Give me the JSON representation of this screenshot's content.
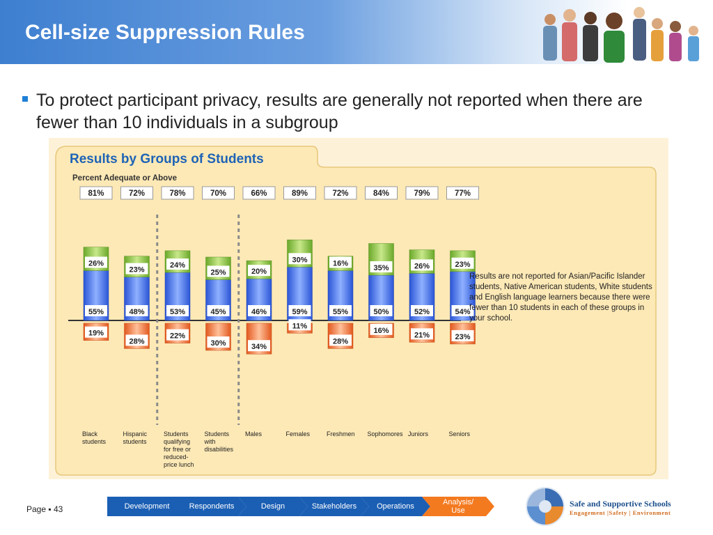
{
  "slide": {
    "title": "Cell-size Suppression Rules"
  },
  "bullet": {
    "text": "To protect participant privacy, results are generally not reported when there are fewer than 10 individuals in a subgroup"
  },
  "chart_data": {
    "type": "bar",
    "title": "Results by Groups of Students",
    "subtitle": "Percent Adequate or Above",
    "categories": [
      "Black students",
      "Hispanic students",
      "Students qualifying for free or reduced-price lunch",
      "Students with disabilities",
      "Males",
      "Females",
      "Freshmen",
      "Sophomores",
      "Juniors",
      "Seniors"
    ],
    "category_label_lines": [
      [
        "Black",
        "students"
      ],
      [
        "Hispanic",
        "students"
      ],
      [
        "Students",
        "qualifying",
        "for free or",
        "reduced-",
        "price lunch"
      ],
      [
        "Students",
        "with",
        "disabilities"
      ],
      [
        "Males"
      ],
      [
        "Females"
      ],
      [
        "Freshmen"
      ],
      [
        "Sophomores"
      ],
      [
        "Juniors"
      ],
      [
        "Seniors"
      ]
    ],
    "totals_labels": [
      "81%",
      "72%",
      "78%",
      "70%",
      "66%",
      "89%",
      "72%",
      "84%",
      "79%",
      "77%"
    ],
    "series": [
      {
        "name": "",
        "values": [
          55,
          48,
          53,
          45,
          46,
          59,
          55,
          50,
          52,
          54
        ],
        "color": "#3f6fe8"
      },
      {
        "name": "",
        "values": [
          26,
          23,
          24,
          25,
          20,
          30,
          16,
          35,
          26,
          23
        ],
        "color": "#8ec33a"
      },
      {
        "name": "",
        "values": [
          19,
          28,
          22,
          30,
          34,
          11,
          28,
          16,
          21,
          23
        ],
        "color": "#f0783c"
      }
    ],
    "group_separators_after": [
      1,
      3
    ],
    "note": "Results are not reported for Asian/Pacific Islander students, Native American students, White students and English language learners because there were fewer than 10 students in each of these groups in your school."
  },
  "footer": {
    "page_label": "Page ▪ 43",
    "nav": [
      {
        "label": "Development",
        "active": false
      },
      {
        "label": "Respondents",
        "active": false
      },
      {
        "label": "Design",
        "active": false
      },
      {
        "label": "Stakeholders",
        "active": false
      },
      {
        "label": "Operations",
        "active": false
      },
      {
        "label": "Analysis/ Use",
        "active": true
      }
    ],
    "logo_title": "Safe and Supportive  Schools",
    "logo_subtitle": "Engagement |Safety | Environment"
  },
  "colors": {
    "banner": "#3e7fd0",
    "nav": "#1b5fb4",
    "nav_active": "#f47a20",
    "panel": "#fde9b6"
  }
}
